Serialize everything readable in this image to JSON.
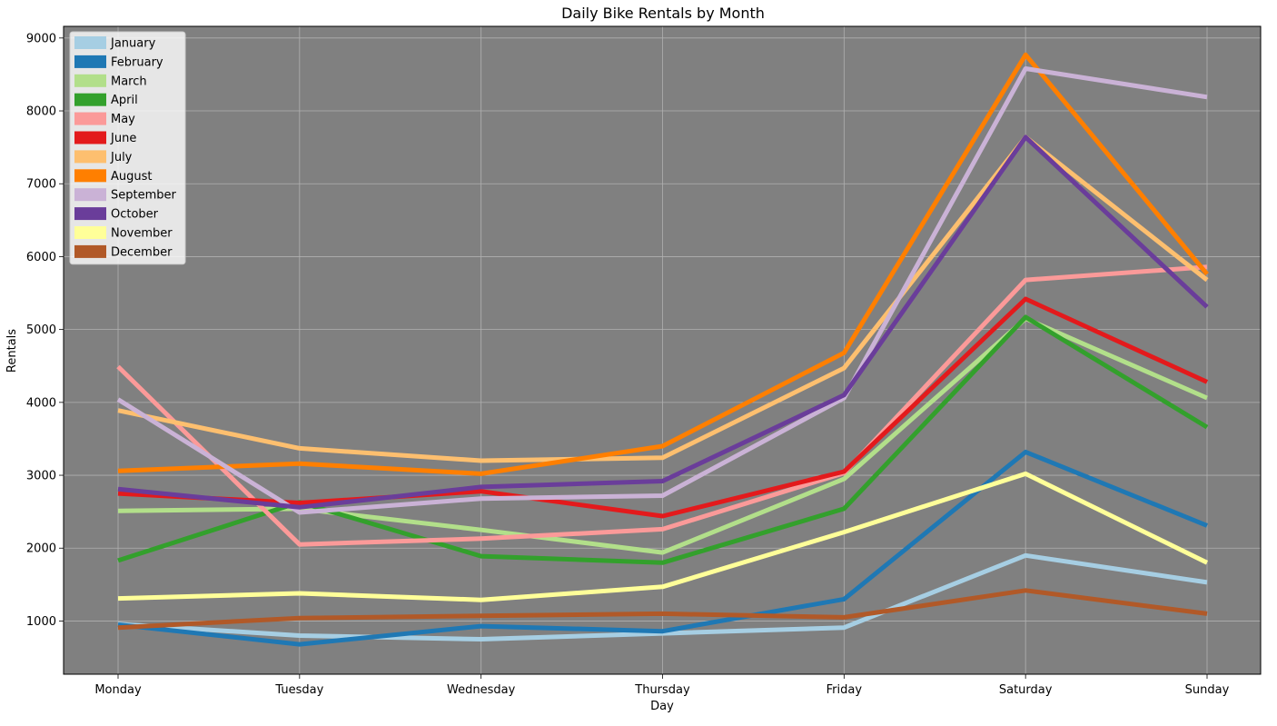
{
  "chart_data": {
    "type": "line",
    "title": "Daily Bike Rentals by Month",
    "xlabel": "Day",
    "ylabel": "Rentals",
    "categories": [
      "Monday",
      "Tuesday",
      "Wednesday",
      "Thursday",
      "Friday",
      "Saturday",
      "Sunday"
    ],
    "ylim": [
      270,
      9160
    ],
    "yticks": [
      1000,
      2000,
      3000,
      4000,
      5000,
      6000,
      7000,
      8000,
      9000
    ],
    "grid": true,
    "plot_background": "#808080",
    "legend_position": "top-left",
    "series": [
      {
        "name": "January",
        "color": "#a6cee3",
        "values": [
          960,
          800,
          750,
          830,
          910,
          1900,
          1530
        ]
      },
      {
        "name": "February",
        "color": "#1f78b4",
        "values": [
          950,
          680,
          930,
          860,
          1300,
          3320,
          2310
        ]
      },
      {
        "name": "March",
        "color": "#b2df8a",
        "values": [
          2510,
          2540,
          2250,
          1940,
          2950,
          5150,
          4060
        ]
      },
      {
        "name": "April",
        "color": "#33a02c",
        "values": [
          1830,
          2630,
          1890,
          1800,
          2540,
          5170,
          3660
        ]
      },
      {
        "name": "May",
        "color": "#fb9a99",
        "values": [
          4490,
          2050,
          2130,
          2260,
          3030,
          5680,
          5860
        ]
      },
      {
        "name": "June",
        "color": "#e31a1c",
        "values": [
          2750,
          2620,
          2780,
          2440,
          3050,
          5420,
          4280
        ]
      },
      {
        "name": "July",
        "color": "#fdbf6f",
        "values": [
          3890,
          3370,
          3200,
          3240,
          4470,
          7640,
          5680
        ]
      },
      {
        "name": "August",
        "color": "#ff7f00",
        "values": [
          3060,
          3160,
          3020,
          3400,
          4680,
          8770,
          5760
        ]
      },
      {
        "name": "September",
        "color": "#cab2d6",
        "values": [
          4040,
          2490,
          2680,
          2720,
          4060,
          8580,
          8190
        ]
      },
      {
        "name": "October",
        "color": "#6a3d9a",
        "values": [
          2810,
          2560,
          2840,
          2920,
          4100,
          7640,
          5310
        ]
      },
      {
        "name": "November",
        "color": "#ffff99",
        "values": [
          1310,
          1380,
          1290,
          1470,
          2220,
          3020,
          1800
        ]
      },
      {
        "name": "December",
        "color": "#b15928",
        "values": [
          910,
          1040,
          1070,
          1100,
          1050,
          1420,
          1100
        ]
      }
    ]
  }
}
